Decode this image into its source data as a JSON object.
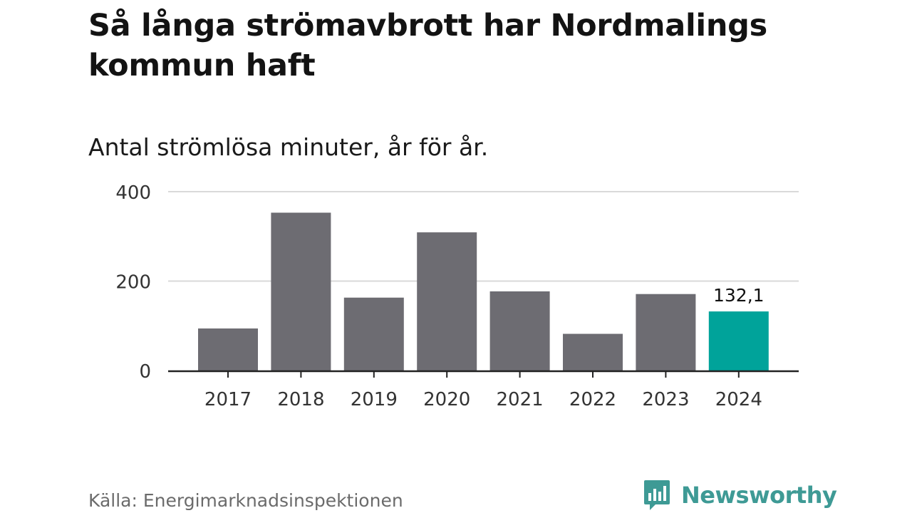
{
  "header": {
    "title": "Så långa strömavbrott har Nordmalings kommun haft",
    "subtitle": "Antal strömlösa minuter, år för år."
  },
  "footer": {
    "source": "Källa: Energimarknadsinspektionen",
    "brand": "Newsworthy"
  },
  "colors": {
    "bar": "#6d6c72",
    "highlight": "#00a39a",
    "grid": "#d9d9d9",
    "axis": "#222222",
    "brand": "#3e9a95"
  },
  "icons": {
    "logo": "bar-chart-speech-bubble-icon"
  },
  "chart_data": {
    "type": "bar",
    "title": "Så långa strömavbrott har Nordmalings kommun haft",
    "subtitle": "Antal strömlösa minuter, år för år.",
    "xlabel": "",
    "ylabel": "",
    "categories": [
      "2017",
      "2018",
      "2019",
      "2020",
      "2021",
      "2022",
      "2023",
      "2024"
    ],
    "values": [
      94,
      353,
      163,
      309,
      177,
      82,
      171,
      132.1
    ],
    "highlight_index": 7,
    "data_labels": [
      {
        "index": 7,
        "text": "132,1"
      }
    ],
    "yticks": [
      0,
      200,
      400
    ],
    "ytick_labels": [
      "0",
      "200",
      "400"
    ],
    "ylim": [
      0,
      400
    ],
    "grid": true,
    "legend": "none"
  }
}
